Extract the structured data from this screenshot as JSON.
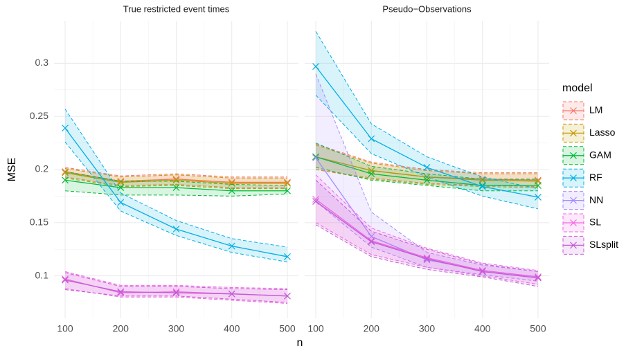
{
  "axis_labels": {
    "x": "n",
    "y": "MSE"
  },
  "legend_title": "model",
  "chart_data": [
    {
      "type": "line",
      "title": "True restricted event times",
      "x": [
        100,
        200,
        300,
        400,
        500
      ],
      "xlim": [
        80,
        520
      ],
      "xticks": [
        100,
        200,
        300,
        400,
        500
      ],
      "ylim": [
        0.06,
        0.34
      ],
      "yticks": [
        0.1,
        0.15,
        0.2,
        0.25,
        0.3
      ],
      "grid": true,
      "series": [
        {
          "name": "LM",
          "color": "#F8766D",
          "values": [
            0.198,
            0.189,
            0.191,
            0.188,
            0.188
          ],
          "lower": [
            0.193,
            0.185,
            0.186,
            0.183,
            0.183
          ],
          "upper": [
            0.202,
            0.194,
            0.196,
            0.193,
            0.193
          ]
        },
        {
          "name": "Lasso",
          "color": "#C49A00",
          "values": [
            0.197,
            0.188,
            0.19,
            0.187,
            0.187
          ],
          "lower": [
            0.192,
            0.184,
            0.185,
            0.182,
            0.182
          ],
          "upper": [
            0.201,
            0.193,
            0.195,
            0.192,
            0.192
          ]
        },
        {
          "name": "GAM",
          "color": "#00BA38",
          "values": [
            0.19,
            0.183,
            0.183,
            0.18,
            0.18
          ],
          "lower": [
            0.18,
            0.176,
            0.176,
            0.175,
            0.177
          ],
          "upper": [
            0.198,
            0.189,
            0.189,
            0.186,
            0.185
          ]
        },
        {
          "name": "RF",
          "color": "#00B0E6",
          "values": [
            0.239,
            0.169,
            0.144,
            0.128,
            0.118
          ],
          "lower": [
            0.226,
            0.161,
            0.138,
            0.122,
            0.113
          ],
          "upper": [
            0.257,
            0.178,
            0.152,
            0.135,
            0.127
          ]
        },
        {
          "name": "SL",
          "color": "#F564E3",
          "values": [
            0.097,
            0.084,
            0.085,
            0.083,
            0.081
          ],
          "lower": [
            0.088,
            0.08,
            0.08,
            0.077,
            0.074
          ],
          "upper": [
            0.104,
            0.091,
            0.091,
            0.089,
            0.088
          ]
        },
        {
          "name": "SLsplit",
          "color": "#C05CD6",
          "values": [
            0.096,
            0.085,
            0.084,
            0.083,
            0.081
          ],
          "lower": [
            0.087,
            0.081,
            0.081,
            0.078,
            0.075
          ],
          "upper": [
            0.103,
            0.09,
            0.09,
            0.088,
            0.087
          ]
        }
      ]
    },
    {
      "type": "line",
      "title": "Pseudo−Observations",
      "x": [
        100,
        200,
        300,
        400,
        500
      ],
      "xlim": [
        80,
        520
      ],
      "xticks": [
        100,
        200,
        300,
        400,
        500
      ],
      "ylim": [
        0.06,
        0.34
      ],
      "yticks": [
        0.1,
        0.15,
        0.2,
        0.25,
        0.3
      ],
      "grid": true,
      "series": [
        {
          "name": "LM",
          "color": "#F8766D",
          "values": [
            0.212,
            0.199,
            0.193,
            0.191,
            0.19
          ],
          "lower": [
            0.2,
            0.192,
            0.187,
            0.185,
            0.184
          ],
          "upper": [
            0.224,
            0.207,
            0.2,
            0.197,
            0.197
          ]
        },
        {
          "name": "Lasso",
          "color": "#C49A00",
          "values": [
            0.212,
            0.199,
            0.193,
            0.19,
            0.189
          ],
          "lower": [
            0.2,
            0.191,
            0.186,
            0.184,
            0.183
          ],
          "upper": [
            0.223,
            0.206,
            0.199,
            0.196,
            0.196
          ]
        },
        {
          "name": "GAM",
          "color": "#00BA38",
          "values": [
            0.212,
            0.196,
            0.19,
            0.185,
            0.185
          ],
          "lower": [
            0.202,
            0.19,
            0.185,
            0.18,
            0.18
          ],
          "upper": [
            0.225,
            0.203,
            0.196,
            0.191,
            0.191
          ]
        },
        {
          "name": "RF",
          "color": "#00B0E6",
          "values": [
            0.297,
            0.229,
            0.202,
            0.184,
            0.174
          ],
          "lower": [
            0.27,
            0.215,
            0.193,
            0.175,
            0.163
          ],
          "upper": [
            0.33,
            0.243,
            0.212,
            0.193,
            0.182
          ]
        },
        {
          "name": "NN",
          "color": "#A58AFF",
          "values": [
            0.211,
            0.137,
            0.115,
            0.105,
            0.099
          ],
          "lower": [
            0.17,
            0.127,
            0.108,
            0.101,
            0.095
          ],
          "upper": [
            0.29,
            0.16,
            0.122,
            0.11,
            0.104
          ]
        },
        {
          "name": "SL",
          "color": "#F564E3",
          "values": [
            0.172,
            0.133,
            0.117,
            0.105,
            0.099
          ],
          "lower": [
            0.15,
            0.12,
            0.108,
            0.1,
            0.092
          ],
          "upper": [
            0.195,
            0.145,
            0.126,
            0.112,
            0.105
          ]
        },
        {
          "name": "SLsplit",
          "color": "#C05CD6",
          "values": [
            0.17,
            0.132,
            0.116,
            0.104,
            0.098
          ],
          "lower": [
            0.148,
            0.118,
            0.106,
            0.099,
            0.09
          ],
          "upper": [
            0.19,
            0.142,
            0.125,
            0.111,
            0.104
          ]
        }
      ]
    }
  ]
}
